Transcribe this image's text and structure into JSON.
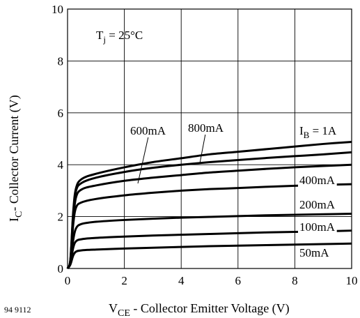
{
  "figure_id": "94 9112",
  "chart_data": {
    "type": "line",
    "xlabel": {
      "main": "V",
      "sub": "CE",
      "rest": " - Collector Emitter Voltage (V)"
    },
    "ylabel": {
      "main": "I",
      "sub": "C",
      "rest": "- Collector Current (V)"
    },
    "xlim": [
      0,
      10
    ],
    "ylim": [
      0,
      10
    ],
    "xticks": [
      0,
      2,
      4,
      6,
      8,
      10
    ],
    "yticks": [
      0,
      2,
      4,
      6,
      8,
      10
    ],
    "grid": true,
    "annotation": {
      "main": "T",
      "sub": "j",
      "rest": " = 25°C"
    },
    "series": [
      {
        "name": {
          "main": "I",
          "sub": "B",
          "rest": " = 1A"
        },
        "points": [
          [
            0,
            0
          ],
          [
            0.1,
            0.35
          ],
          [
            0.2,
            2.2
          ],
          [
            0.3,
            3.1
          ],
          [
            0.5,
            3.45
          ],
          [
            1,
            3.65
          ],
          [
            2,
            3.9
          ],
          [
            3,
            4.1
          ],
          [
            4,
            4.25
          ],
          [
            5,
            4.4
          ],
          [
            6,
            4.5
          ],
          [
            7,
            4.6
          ],
          [
            8,
            4.7
          ],
          [
            9,
            4.8
          ],
          [
            10,
            4.88
          ]
        ]
      },
      {
        "name": {
          "main": "800mA"
        },
        "points": [
          [
            0,
            0
          ],
          [
            0.1,
            0.32
          ],
          [
            0.2,
            2.1
          ],
          [
            0.3,
            3.0
          ],
          [
            0.5,
            3.3
          ],
          [
            1,
            3.5
          ],
          [
            2,
            3.72
          ],
          [
            3,
            3.88
          ],
          [
            4,
            4.0
          ],
          [
            5,
            4.1
          ],
          [
            6,
            4.18
          ],
          [
            7,
            4.26
          ],
          [
            8,
            4.33
          ],
          [
            9,
            4.4
          ],
          [
            10,
            4.48
          ]
        ]
      },
      {
        "name": {
          "main": "600mA"
        },
        "points": [
          [
            0,
            0
          ],
          [
            0.1,
            0.3
          ],
          [
            0.2,
            1.9
          ],
          [
            0.3,
            2.75
          ],
          [
            0.5,
            3.05
          ],
          [
            1,
            3.2
          ],
          [
            2,
            3.38
          ],
          [
            3,
            3.5
          ],
          [
            4,
            3.6
          ],
          [
            5,
            3.7
          ],
          [
            6,
            3.77
          ],
          [
            7,
            3.84
          ],
          [
            8,
            3.9
          ],
          [
            9,
            3.95
          ],
          [
            10,
            4.0
          ]
        ]
      },
      {
        "name": {
          "main": "400mA"
        },
        "points": [
          [
            0,
            0
          ],
          [
            0.1,
            0.28
          ],
          [
            0.2,
            1.7
          ],
          [
            0.3,
            2.35
          ],
          [
            0.5,
            2.55
          ],
          [
            1,
            2.68
          ],
          [
            2,
            2.82
          ],
          [
            3,
            2.92
          ],
          [
            4,
            3.0
          ],
          [
            5,
            3.06
          ],
          [
            6,
            3.1
          ],
          [
            7,
            3.15
          ],
          [
            8,
            3.19
          ],
          [
            9,
            3.22
          ],
          [
            10,
            3.25
          ]
        ]
      },
      {
        "name": {
          "main": "200mA"
        },
        "points": [
          [
            0,
            0
          ],
          [
            0.1,
            0.22
          ],
          [
            0.2,
            1.1
          ],
          [
            0.3,
            1.55
          ],
          [
            0.5,
            1.72
          ],
          [
            1,
            1.8
          ],
          [
            2,
            1.87
          ],
          [
            3,
            1.92
          ],
          [
            4,
            1.96
          ],
          [
            5,
            1.99
          ],
          [
            6,
            2.02
          ],
          [
            7,
            2.05
          ],
          [
            8,
            2.07
          ],
          [
            9,
            2.09
          ],
          [
            10,
            2.11
          ]
        ]
      },
      {
        "name": {
          "main": "100mA"
        },
        "points": [
          [
            0,
            0
          ],
          [
            0.1,
            0.2
          ],
          [
            0.2,
            0.8
          ],
          [
            0.3,
            1.05
          ],
          [
            0.5,
            1.13
          ],
          [
            1,
            1.18
          ],
          [
            2,
            1.23
          ],
          [
            3,
            1.27
          ],
          [
            4,
            1.3
          ],
          [
            5,
            1.33
          ],
          [
            6,
            1.36
          ],
          [
            7,
            1.39
          ],
          [
            8,
            1.41
          ],
          [
            9,
            1.43
          ],
          [
            10,
            1.46
          ]
        ]
      },
      {
        "name": {
          "main": "50mA"
        },
        "points": [
          [
            0,
            0
          ],
          [
            0.1,
            0.15
          ],
          [
            0.2,
            0.5
          ],
          [
            0.3,
            0.65
          ],
          [
            0.5,
            0.7
          ],
          [
            1,
            0.73
          ],
          [
            2,
            0.77
          ],
          [
            3,
            0.8
          ],
          [
            4,
            0.83
          ],
          [
            5,
            0.86
          ],
          [
            6,
            0.88
          ],
          [
            7,
            0.9
          ],
          [
            8,
            0.92
          ],
          [
            9,
            0.94
          ],
          [
            10,
            0.96
          ]
        ]
      }
    ]
  }
}
